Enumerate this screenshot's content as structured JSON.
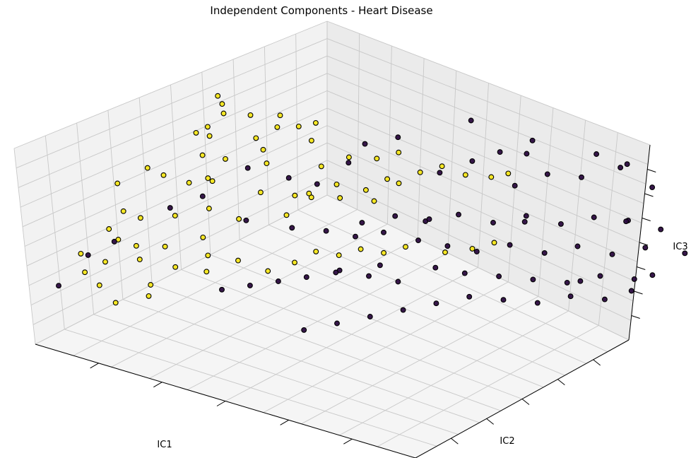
{
  "chart_data": {
    "type": "scatter",
    "projection": "3d",
    "title": "Independent Components - Heart Disease",
    "xlabel": "IC1",
    "ylabel": "IC2",
    "zlabel": "IC3",
    "grid": true,
    "legend": "none",
    "colors": {
      "class_0": "#2b0b3f",
      "class_1": "#f6e619",
      "edge": "#000000"
    },
    "series": [
      {
        "name": "",
        "color": "#f6e619",
        "points": [
          [
            -2.6,
            0.6,
            1.4
          ],
          [
            -2.5,
            0.55,
            1.3
          ],
          [
            -2.6,
            0.1,
            0.9
          ],
          [
            -2.2,
            -0.3,
            0.8
          ],
          [
            -2.4,
            0.1,
            1.1
          ],
          [
            -2.1,
            0.6,
            1.2
          ],
          [
            -2.2,
            0.2,
            1.4
          ],
          [
            -2.0,
            -0.1,
            0.7
          ],
          [
            -1.8,
            0.3,
            1.0
          ],
          [
            -1.6,
            0.5,
            1.2
          ],
          [
            -1.7,
            0.7,
            1.3
          ],
          [
            -1.5,
            0.8,
            1.1
          ],
          [
            -1.3,
            0.9,
            1.2
          ],
          [
            -1.9,
            -0.6,
            0.6
          ],
          [
            -2.3,
            -0.5,
            0.3
          ],
          [
            -2.0,
            -0.4,
            0.4
          ],
          [
            -1.4,
            -0.2,
            0.3
          ],
          [
            -1.1,
            0.1,
            0.2
          ],
          [
            -1.0,
            0.3,
            0.1
          ],
          [
            -1.2,
            0.5,
            0.0
          ],
          [
            -0.9,
            0.7,
            0.2
          ],
          [
            -0.6,
            0.9,
            0.1
          ],
          [
            -0.4,
            1.1,
            0.3
          ],
          [
            -1.6,
            -1.0,
            0.3
          ],
          [
            -1.3,
            -0.8,
            0.1
          ],
          [
            -1.5,
            -1.3,
            -0.1
          ],
          [
            -2.0,
            -1.2,
            0.1
          ],
          [
            -2.4,
            -1.4,
            0.0
          ],
          [
            -2.6,
            -1.8,
            -0.1
          ],
          [
            -2.5,
            -1.6,
            0.2
          ],
          [
            -2.3,
            -2.0,
            -0.1
          ],
          [
            -2.1,
            -1.9,
            -0.2
          ],
          [
            -1.9,
            -2.1,
            -0.3
          ],
          [
            -2.3,
            -2.3,
            -0.4
          ],
          [
            -2.6,
            -2.4,
            -0.3
          ],
          [
            -2.4,
            -2.6,
            -0.5
          ],
          [
            -1.8,
            -1.7,
            -0.2
          ],
          [
            -1.5,
            -1.9,
            -0.4
          ],
          [
            -1.2,
            -1.6,
            -0.2
          ],
          [
            -1.0,
            -1.9,
            -0.3
          ],
          [
            -0.8,
            -1.5,
            -0.2
          ],
          [
            -1.6,
            -2.3,
            -0.6
          ],
          [
            -2.1,
            -2.7,
            -0.6
          ],
          [
            -1.7,
            -2.9,
            -0.7
          ],
          [
            -1.4,
            -2.6,
            -0.6
          ],
          [
            -0.5,
            -1.3,
            -0.4
          ],
          [
            -0.3,
            -1.0,
            -0.3
          ],
          [
            -0.1,
            -0.8,
            -0.1
          ],
          [
            0.1,
            -0.6,
            -0.2
          ],
          [
            0.3,
            -0.4,
            -0.1
          ],
          [
            0.5,
            -0.2,
            -0.2
          ],
          [
            0.7,
            0.0,
            -0.1
          ],
          [
            0.2,
            0.6,
            0.7
          ],
          [
            0.4,
            0.8,
            0.9
          ],
          [
            0.6,
            1.0,
            1.0
          ],
          [
            0.8,
            1.2,
            0.8
          ],
          [
            0.0,
            0.9,
            1.1
          ],
          [
            -0.2,
            0.7,
            1.0
          ],
          [
            1.0,
            0.4,
            -0.3
          ],
          [
            1.2,
            0.7,
            -0.3
          ],
          [
            1.4,
            0.9,
            -0.2
          ],
          [
            -1.0,
            -0.5,
            1.2
          ],
          [
            -1.2,
            -0.3,
            1.3
          ],
          [
            -1.8,
            -0.6,
            1.5
          ],
          [
            -2.7,
            -0.8,
            0.6
          ],
          [
            -0.7,
            0.2,
            0.9
          ],
          [
            -0.4,
            0.4,
            1.1
          ],
          [
            0.1,
            0.2,
            0.5
          ],
          [
            -0.2,
            -0.1,
            0.6
          ],
          [
            -1.4,
            0.9,
            0.8
          ],
          [
            -2.2,
            -1.1,
            0.8
          ],
          [
            -2.8,
            -1.3,
            0.5
          ],
          [
            -0.6,
            -0.7,
            0.4
          ],
          [
            1.3,
            1.1,
            1.0
          ],
          [
            1.5,
            1.2,
            1.1
          ]
        ]
      },
      {
        "name": "",
        "color": "#2b0b3f",
        "points": [
          [
            -2.6,
            -2.9,
            -0.7
          ],
          [
            -2.4,
            -2.5,
            -0.2
          ],
          [
            -2.2,
            -2.2,
            0.0
          ],
          [
            -1.9,
            -1.4,
            0.4
          ],
          [
            -1.6,
            -1.1,
            0.6
          ],
          [
            -1.1,
            -0.9,
            0.2
          ],
          [
            -0.7,
            -0.5,
            0.0
          ],
          [
            -0.4,
            -0.2,
            -0.1
          ],
          [
            -0.1,
            0.0,
            -0.2
          ],
          [
            0.2,
            0.2,
            -0.1
          ],
          [
            0.5,
            0.5,
            -0.3
          ],
          [
            0.8,
            0.7,
            -0.4
          ],
          [
            1.1,
            0.9,
            -0.5
          ],
          [
            1.4,
            1.2,
            -0.4
          ],
          [
            1.7,
            1.5,
            -0.6
          ],
          [
            2.0,
            1.8,
            -0.5
          ],
          [
            2.3,
            2.1,
            -0.7
          ],
          [
            2.6,
            2.4,
            -0.6
          ],
          [
            2.2,
            2.6,
            -0.3
          ],
          [
            1.9,
            2.3,
            -0.2
          ],
          [
            1.6,
            2.0,
            -0.3
          ],
          [
            1.3,
            1.7,
            -0.1
          ],
          [
            1.0,
            1.4,
            -0.2
          ],
          [
            0.7,
            1.1,
            0.0
          ],
          [
            0.4,
            0.8,
            -0.1
          ],
          [
            0.9,
            0.3,
            -0.6
          ],
          [
            1.2,
            0.5,
            -0.7
          ],
          [
            1.5,
            0.8,
            -0.8
          ],
          [
            1.8,
            1.1,
            -0.9
          ],
          [
            2.1,
            1.4,
            -1.0
          ],
          [
            2.4,
            1.7,
            -0.9
          ],
          [
            2.7,
            2.0,
            -1.0
          ],
          [
            0.0,
            -0.5,
            -0.6
          ],
          [
            0.3,
            -0.3,
            -0.7
          ],
          [
            0.6,
            -0.1,
            -0.8
          ],
          [
            -0.3,
            -0.8,
            -0.7
          ],
          [
            -0.6,
            -1.0,
            -0.8
          ],
          [
            -0.9,
            -1.2,
            -0.9
          ],
          [
            -1.2,
            -1.4,
            -1.0
          ],
          [
            1.7,
            0.6,
            -1.1
          ],
          [
            2.0,
            0.9,
            -1.2
          ],
          [
            2.3,
            1.2,
            -1.1
          ],
          [
            2.6,
            1.5,
            -1.2
          ],
          [
            2.8,
            1.8,
            -1.1
          ],
          [
            1.4,
            0.3,
            -1.0
          ],
          [
            1.1,
            0.0,
            -1.1
          ],
          [
            0.8,
            -0.3,
            -1.2
          ],
          [
            0.5,
            -0.6,
            -1.3
          ],
          [
            0.2,
            -0.9,
            -1.4
          ],
          [
            -0.1,
            -1.2,
            -1.5
          ],
          [
            1.0,
            1.9,
            0.3
          ],
          [
            1.3,
            2.2,
            0.5
          ],
          [
            1.6,
            2.5,
            0.4
          ],
          [
            2.0,
            2.8,
            0.6
          ],
          [
            2.4,
            2.9,
            0.3
          ],
          [
            0.6,
            1.6,
            0.8
          ],
          [
            0.9,
            1.8,
            1.0
          ],
          [
            1.2,
            2.1,
            1.2
          ],
          [
            0.3,
            1.3,
            0.6
          ],
          [
            -0.5,
            0.5,
            0.9
          ],
          [
            -0.8,
            0.2,
            0.5
          ],
          [
            -1.4,
            -0.4,
            0.9
          ],
          [
            -1.0,
            -0.1,
            0.7
          ],
          [
            2.5,
            2.2,
            0.0
          ],
          [
            2.8,
            2.5,
            -0.2
          ],
          [
            1.8,
            2.6,
            0.9
          ],
          [
            2.2,
            2.7,
            0.8
          ],
          [
            0.2,
            -0.2,
            0.3
          ],
          [
            0.5,
            0.1,
            0.4
          ],
          [
            0.8,
            0.4,
            0.3
          ],
          [
            -0.2,
            0.5,
            1.4
          ],
          [
            0.1,
            0.8,
            1.5
          ],
          [
            1.5,
            1.6,
            1.3
          ],
          [
            1.9,
            1.9,
            -1.3
          ],
          [
            2.5,
            2.6,
            -1.3
          ],
          [
            0.0,
            0.3,
            -0.9
          ],
          [
            -0.4,
            -0.1,
            -1.0
          ],
          [
            1.6,
            1.3,
            0.1
          ],
          [
            2.9,
            2.8,
            -0.8
          ],
          [
            0.4,
            1.9,
            1.4
          ]
        ]
      }
    ]
  }
}
